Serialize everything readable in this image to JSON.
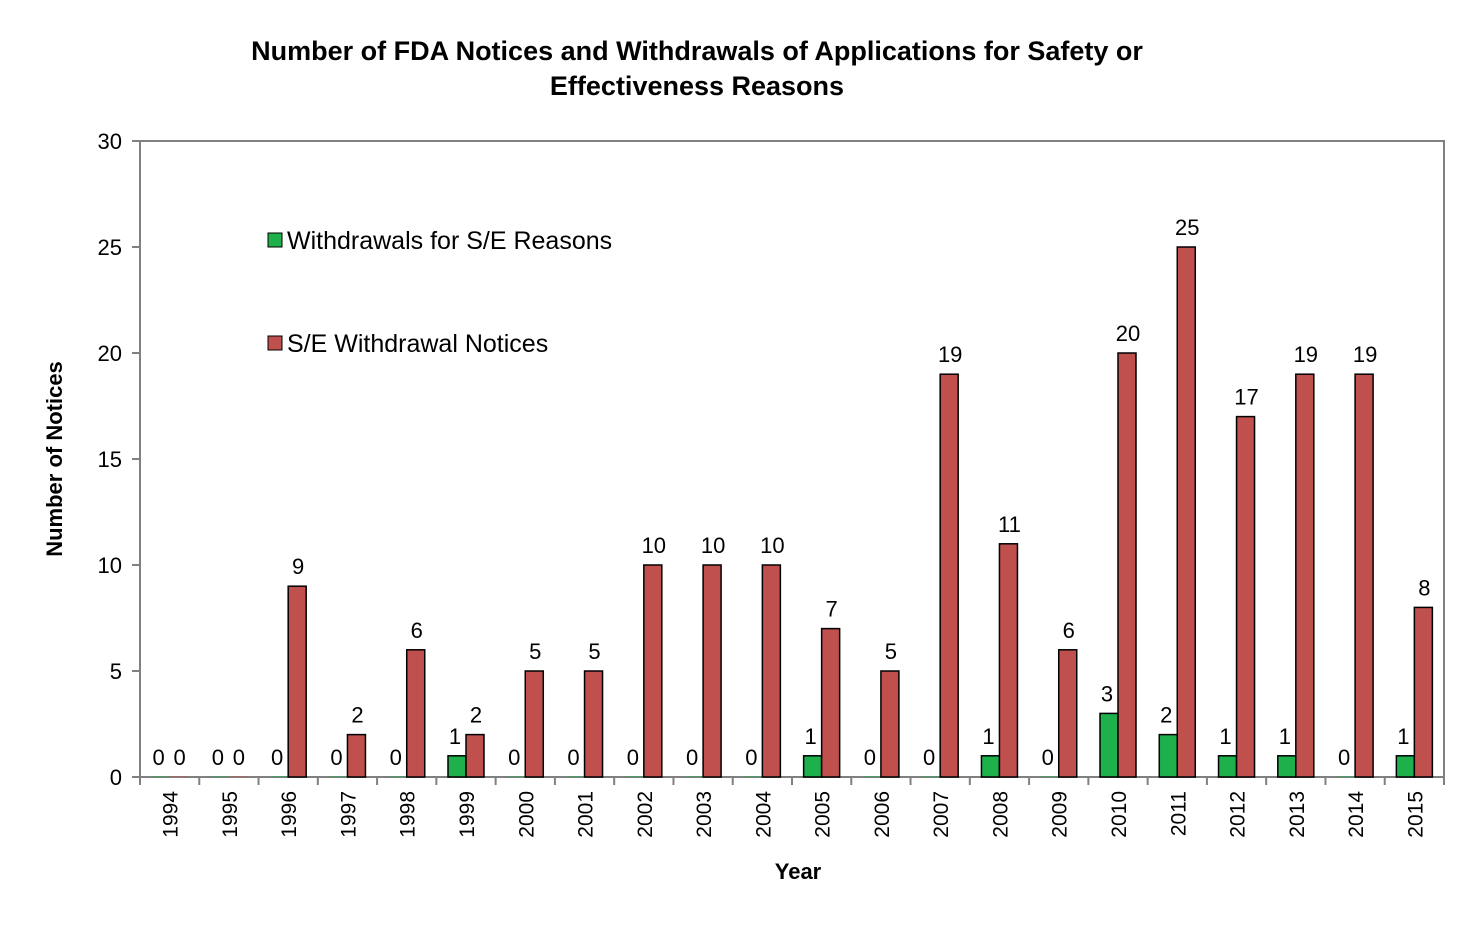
{
  "chart_data": {
    "type": "bar",
    "title_line1": "Number of FDA Notices and Withdrawals of Applications for Safety or",
    "title_line2": "Effectiveness Reasons",
    "xlabel": "Year",
    "ylabel": "Number of Notices",
    "ylim": [
      0,
      30
    ],
    "yticks": [
      0,
      5,
      10,
      15,
      20,
      25,
      30
    ],
    "grid": false,
    "legend_placement": "top-left",
    "categories": [
      "1994",
      "1995",
      "1996",
      "1997",
      "1998",
      "1999",
      "2000",
      "2001",
      "2002",
      "2003",
      "2004",
      "2005",
      "2006",
      "2007",
      "2008",
      "2009",
      "2010",
      "2011",
      "2012",
      "2013",
      "2014",
      "2015"
    ],
    "series": [
      {
        "name": "Withdrawals for S/E Reasons",
        "color": "#1db04b",
        "values": [
          0,
          0,
          0,
          0,
          0,
          1,
          0,
          0,
          0,
          0,
          0,
          1,
          0,
          0,
          1,
          0,
          3,
          2,
          1,
          1,
          0,
          1
        ]
      },
      {
        "name": "S/E Withdrawal Notices",
        "color": "#c0504d",
        "values": [
          0,
          0,
          9,
          2,
          6,
          2,
          5,
          5,
          10,
          10,
          10,
          7,
          5,
          19,
          11,
          6,
          20,
          25,
          17,
          19,
          19,
          8
        ]
      }
    ]
  }
}
